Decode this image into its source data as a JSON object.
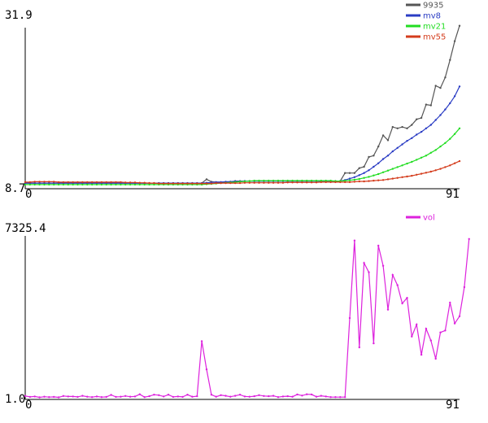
{
  "chart_data": [
    {
      "type": "line",
      "xlim": [
        0,
        91
      ],
      "ylim": [
        8.7,
        31.9
      ],
      "y_max_label": "31.9",
      "y_min_label": "8.7",
      "x_min_label": "0",
      "x_max_label": "91",
      "legend_position": "top-right",
      "grid": false,
      "series": [
        {
          "name": "9935",
          "color": "#555555",
          "values": [
            9.15,
            9.15,
            9.15,
            9.15,
            9.15,
            9.15,
            9.15,
            9.15,
            9.15,
            9.15,
            9.15,
            9.15,
            9.15,
            9.15,
            9.15,
            9.15,
            9.15,
            9.15,
            9.15,
            9.15,
            9.15,
            9.15,
            9.15,
            9.15,
            9.15,
            9.15,
            9.15,
            9.15,
            9.15,
            9.15,
            9.15,
            9.15,
            9.15,
            9.15,
            9.15,
            9.15,
            9.15,
            9.15,
            9.7,
            9.35,
            9.3,
            9.3,
            9.3,
            9.35,
            9.45,
            9.45,
            9.45,
            9.45,
            9.45,
            9.45,
            9.45,
            9.45,
            9.45,
            9.45,
            9.45,
            9.45,
            9.45,
            9.45,
            9.45,
            9.45,
            9.45,
            9.45,
            9.45,
            9.45,
            9.45,
            9.45,
            9.45,
            10.6,
            10.6,
            10.6,
            11.3,
            11.5,
            12.9,
            13.1,
            14.4,
            16.0,
            15.3,
            17.2,
            17.0,
            17.2,
            17.0,
            17.5,
            18.3,
            18.5,
            20.4,
            20.3,
            23.1,
            22.8,
            24.3,
            26.8,
            29.5,
            31.7
          ]
        },
        {
          "name": "mv8",
          "color": "#2a3cc4",
          "values": [
            9.15,
            9.15,
            9.15,
            9.15,
            9.15,
            9.15,
            9.15,
            9.15,
            9.15,
            9.15,
            9.15,
            9.15,
            9.15,
            9.15,
            9.15,
            9.15,
            9.15,
            9.15,
            9.15,
            9.15,
            9.15,
            9.15,
            9.15,
            9.15,
            9.15,
            9.15,
            9.15,
            9.15,
            9.15,
            9.15,
            9.15,
            9.15,
            9.15,
            9.15,
            9.15,
            9.15,
            9.15,
            9.15,
            9.2,
            9.25,
            9.3,
            9.3,
            9.35,
            9.35,
            9.4,
            9.4,
            9.45,
            9.45,
            9.45,
            9.45,
            9.45,
            9.45,
            9.45,
            9.45,
            9.45,
            9.45,
            9.45,
            9.45,
            9.45,
            9.45,
            9.45,
            9.45,
            9.45,
            9.45,
            9.45,
            9.45,
            9.45,
            9.6,
            9.8,
            10.0,
            10.3,
            10.6,
            11.0,
            11.5,
            12.0,
            12.6,
            13.1,
            13.7,
            14.2,
            14.7,
            15.2,
            15.6,
            16.1,
            16.5,
            17.0,
            17.5,
            18.2,
            18.9,
            19.7,
            20.6,
            21.6,
            23.0
          ]
        },
        {
          "name": "mv21",
          "color": "#22dd22",
          "values": [
            8.95,
            8.95,
            8.95,
            8.95,
            8.95,
            8.95,
            8.95,
            8.95,
            8.95,
            8.95,
            8.95,
            8.95,
            8.95,
            8.95,
            8.95,
            8.95,
            8.95,
            8.95,
            8.95,
            8.95,
            8.95,
            8.95,
            8.95,
            8.95,
            8.95,
            8.95,
            8.95,
            8.95,
            8.95,
            8.95,
            8.95,
            8.95,
            8.95,
            8.95,
            8.95,
            8.95,
            8.95,
            8.95,
            9.0,
            9.05,
            9.1,
            9.15,
            9.2,
            9.25,
            9.3,
            9.35,
            9.4,
            9.45,
            9.5,
            9.5,
            9.5,
            9.5,
            9.5,
            9.5,
            9.5,
            9.5,
            9.5,
            9.5,
            9.5,
            9.5,
            9.5,
            9.5,
            9.5,
            9.5,
            9.5,
            9.45,
            9.45,
            9.5,
            9.55,
            9.65,
            9.75,
            9.9,
            10.05,
            10.25,
            10.45,
            10.7,
            10.95,
            11.2,
            11.45,
            11.7,
            11.95,
            12.2,
            12.5,
            12.8,
            13.1,
            13.5,
            13.9,
            14.4,
            14.9,
            15.5,
            16.2,
            17.0
          ]
        },
        {
          "name": "mv55",
          "color": "#d43c1c",
          "values": [
            9.3,
            9.3,
            9.35,
            9.35,
            9.35,
            9.35,
            9.35,
            9.3,
            9.3,
            9.3,
            9.3,
            9.3,
            9.3,
            9.3,
            9.3,
            9.3,
            9.3,
            9.3,
            9.3,
            9.3,
            9.3,
            9.25,
            9.25,
            9.25,
            9.2,
            9.2,
            9.15,
            9.15,
            9.1,
            9.1,
            9.1,
            9.1,
            9.1,
            9.1,
            9.1,
            9.1,
            9.1,
            9.1,
            9.1,
            9.1,
            9.15,
            9.15,
            9.15,
            9.15,
            9.15,
            9.15,
            9.2,
            9.2,
            9.2,
            9.2,
            9.2,
            9.2,
            9.2,
            9.2,
            9.2,
            9.25,
            9.25,
            9.25,
            9.25,
            9.25,
            9.25,
            9.25,
            9.3,
            9.3,
            9.3,
            9.3,
            9.3,
            9.3,
            9.3,
            9.35,
            9.4,
            9.4,
            9.45,
            9.5,
            9.55,
            9.6,
            9.7,
            9.8,
            9.9,
            10.0,
            10.1,
            10.2,
            10.35,
            10.5,
            10.65,
            10.8,
            11.0,
            11.2,
            11.45,
            11.7,
            12.0,
            12.3
          ]
        }
      ]
    },
    {
      "type": "line",
      "xlim": [
        0,
        91
      ],
      "ylim": [
        1.0,
        7325.4
      ],
      "y_max_label": "7325.4",
      "y_min_label": "1.0",
      "x_min_label": "0",
      "x_max_label": "91",
      "legend_position": "top-right",
      "grid": false,
      "series": [
        {
          "name": "vol",
          "color": "#dd22dd",
          "values": [
            80,
            40,
            60,
            20,
            50,
            30,
            40,
            20,
            80,
            60,
            60,
            40,
            90,
            50,
            30,
            60,
            30,
            40,
            130,
            40,
            50,
            80,
            50,
            60,
            160,
            30,
            70,
            140,
            120,
            60,
            140,
            40,
            60,
            40,
            140,
            50,
            70,
            2550,
            1280,
            140,
            50,
            120,
            90,
            50,
            90,
            140,
            60,
            50,
            70,
            120,
            80,
            70,
            90,
            30,
            60,
            70,
            50,
            150,
            100,
            160,
            150,
            50,
            90,
            60,
            30,
            30,
            30,
            30,
            3590,
            7080,
            2270,
            6070,
            5650,
            2450,
            6850,
            5940,
            3970,
            5530,
            5070,
            4250,
            4500,
            2760,
            3300,
            1940,
            3110,
            2580,
            1760,
            2940,
            3030,
            4290,
            3350,
            3670,
            4980,
            7150
          ]
        }
      ]
    }
  ]
}
